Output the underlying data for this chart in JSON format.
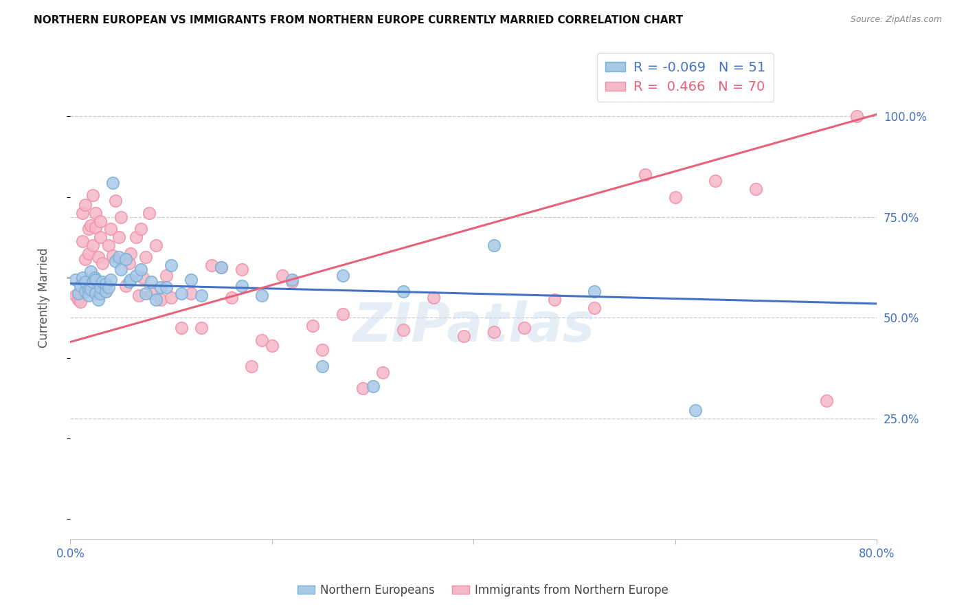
{
  "title": "NORTHERN EUROPEAN VS IMMIGRANTS FROM NORTHERN EUROPE CURRENTLY MARRIED CORRELATION CHART",
  "source": "Source: ZipAtlas.com",
  "ylabel": "Currently Married",
  "xlim": [
    0.0,
    0.8
  ],
  "ylim": [
    -0.05,
    1.15
  ],
  "blue_R": -0.069,
  "blue_N": 51,
  "pink_R": 0.466,
  "pink_N": 70,
  "blue_color": "#a8c8e8",
  "pink_color": "#f5b8c8",
  "blue_edge_color": "#7aafd4",
  "pink_edge_color": "#f090a8",
  "blue_line_color": "#4472c4",
  "pink_line_color": "#e8607a",
  "watermark": "ZIPatlas",
  "blue_line_x0": 0.0,
  "blue_line_y0": 0.585,
  "blue_line_x1": 0.8,
  "blue_line_y1": 0.535,
  "pink_line_x0": 0.0,
  "pink_line_y0": 0.44,
  "pink_line_x1": 0.8,
  "pink_line_y1": 1.005,
  "blue_x": [
    0.005,
    0.008,
    0.01,
    0.012,
    0.015,
    0.015,
    0.018,
    0.018,
    0.02,
    0.02,
    0.022,
    0.024,
    0.025,
    0.025,
    0.028,
    0.03,
    0.03,
    0.032,
    0.035,
    0.035,
    0.038,
    0.04,
    0.042,
    0.045,
    0.048,
    0.05,
    0.055,
    0.058,
    0.06,
    0.065,
    0.07,
    0.075,
    0.08,
    0.085,
    0.09,
    0.095,
    0.1,
    0.11,
    0.12,
    0.13,
    0.15,
    0.17,
    0.19,
    0.22,
    0.25,
    0.27,
    0.3,
    0.33,
    0.42,
    0.52,
    0.62
  ],
  "blue_y": [
    0.595,
    0.56,
    0.58,
    0.6,
    0.565,
    0.59,
    0.57,
    0.555,
    0.615,
    0.57,
    0.59,
    0.6,
    0.56,
    0.595,
    0.545,
    0.56,
    0.575,
    0.59,
    0.565,
    0.585,
    0.575,
    0.595,
    0.835,
    0.64,
    0.65,
    0.62,
    0.645,
    0.59,
    0.595,
    0.605,
    0.62,
    0.56,
    0.59,
    0.545,
    0.575,
    0.575,
    0.63,
    0.56,
    0.595,
    0.555,
    0.625,
    0.58,
    0.555,
    0.595,
    0.38,
    0.605,
    0.33,
    0.565,
    0.68,
    0.565,
    0.27
  ],
  "pink_x": [
    0.005,
    0.008,
    0.01,
    0.012,
    0.012,
    0.015,
    0.015,
    0.018,
    0.018,
    0.02,
    0.022,
    0.022,
    0.025,
    0.025,
    0.028,
    0.028,
    0.03,
    0.03,
    0.032,
    0.035,
    0.038,
    0.04,
    0.042,
    0.045,
    0.048,
    0.05,
    0.055,
    0.058,
    0.06,
    0.065,
    0.068,
    0.07,
    0.072,
    0.075,
    0.078,
    0.08,
    0.085,
    0.09,
    0.095,
    0.1,
    0.11,
    0.12,
    0.13,
    0.14,
    0.15,
    0.16,
    0.17,
    0.18,
    0.19,
    0.2,
    0.21,
    0.22,
    0.24,
    0.25,
    0.27,
    0.29,
    0.31,
    0.33,
    0.36,
    0.39,
    0.42,
    0.45,
    0.48,
    0.52,
    0.57,
    0.6,
    0.64,
    0.68,
    0.75,
    0.78
  ],
  "pink_y": [
    0.555,
    0.545,
    0.54,
    0.69,
    0.76,
    0.78,
    0.645,
    0.72,
    0.66,
    0.73,
    0.805,
    0.68,
    0.725,
    0.76,
    0.65,
    0.58,
    0.7,
    0.74,
    0.635,
    0.565,
    0.68,
    0.72,
    0.655,
    0.79,
    0.7,
    0.75,
    0.58,
    0.635,
    0.66,
    0.7,
    0.555,
    0.72,
    0.6,
    0.65,
    0.76,
    0.56,
    0.68,
    0.545,
    0.605,
    0.55,
    0.475,
    0.56,
    0.475,
    0.63,
    0.625,
    0.55,
    0.62,
    0.38,
    0.445,
    0.43,
    0.605,
    0.59,
    0.48,
    0.42,
    0.51,
    0.325,
    0.365,
    0.47,
    0.55,
    0.455,
    0.465,
    0.475,
    0.545,
    0.525,
    0.855,
    0.8,
    0.84,
    0.82,
    0.295,
    1.0
  ]
}
